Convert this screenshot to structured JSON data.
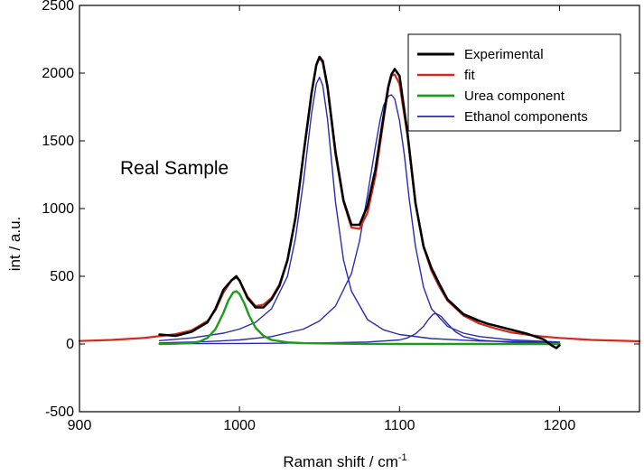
{
  "chart_data": {
    "type": "line",
    "title": "",
    "annotation": "Real Sample",
    "xlabel": "Raman shift / cm",
    "xlabel_superscript": "-1",
    "ylabel": "int / a.u.",
    "xlim": [
      900,
      1250
    ],
    "ylim": [
      -500,
      2500
    ],
    "xticks": [
      900,
      1000,
      1100,
      1200
    ],
    "yticks": [
      -500,
      0,
      500,
      1000,
      1500,
      2000,
      2500
    ],
    "legend_position": "top-right",
    "colors": {
      "experimental": "#000000",
      "fit": "#d42a1e",
      "urea": "#1f9a1f",
      "ethanol": "#2b2bb0"
    },
    "series": [
      {
        "name": "Experimental",
        "key": "experimental",
        "x": [
          950,
          960,
          970,
          980,
          985,
          990,
          995,
          998,
          1000,
          1005,
          1010,
          1015,
          1020,
          1025,
          1030,
          1035,
          1040,
          1045,
          1048,
          1050,
          1052,
          1055,
          1060,
          1065,
          1070,
          1075,
          1080,
          1085,
          1090,
          1093,
          1095,
          1097,
          1100,
          1105,
          1110,
          1115,
          1120,
          1125,
          1130,
          1140,
          1150,
          1155,
          1160,
          1170,
          1180,
          1190,
          1195,
          1198,
          1200
        ],
        "y": [
          70,
          60,
          90,
          160,
          260,
          400,
          470,
          500,
          470,
          340,
          270,
          270,
          330,
          430,
          620,
          930,
          1400,
          1850,
          2060,
          2120,
          2090,
          1900,
          1420,
          1060,
          880,
          880,
          1020,
          1290,
          1680,
          1900,
          1990,
          2030,
          1980,
          1560,
          1040,
          720,
          560,
          440,
          330,
          220,
          170,
          150,
          135,
          105,
          75,
          35,
          -10,
          -30,
          -10
        ]
      },
      {
        "name": "fit",
        "key": "fit",
        "x": [
          900,
          920,
          940,
          960,
          970,
          980,
          985,
          990,
          995,
          998,
          1000,
          1005,
          1010,
          1015,
          1020,
          1025,
          1030,
          1035,
          1040,
          1045,
          1048,
          1050,
          1052,
          1055,
          1060,
          1065,
          1070,
          1075,
          1080,
          1085,
          1090,
          1093,
          1095,
          1097,
          1100,
          1105,
          1110,
          1115,
          1120,
          1125,
          1130,
          1140,
          1150,
          1160,
          1170,
          1180,
          1190,
          1200,
          1220,
          1250
        ],
        "y": [
          22,
          30,
          44,
          73,
          100,
          170,
          250,
          380,
          470,
          490,
          470,
          350,
          280,
          290,
          340,
          440,
          620,
          930,
          1400,
          1850,
          2060,
          2110,
          2080,
          1890,
          1400,
          1050,
          860,
          850,
          970,
          1240,
          1650,
          1890,
          1980,
          1990,
          1920,
          1540,
          1040,
          720,
          540,
          420,
          320,
          210,
          150,
          115,
          85,
          68,
          55,
          45,
          30,
          20
        ]
      },
      {
        "name": "Urea component",
        "key": "urea",
        "x": [
          950,
          960,
          970,
          975,
          980,
          985,
          990,
          993,
          996,
          998,
          1000,
          1003,
          1006,
          1010,
          1015,
          1020,
          1030,
          1040,
          1060,
          1080,
          1100,
          1150,
          1200
        ],
        "y": [
          0,
          2,
          8,
          18,
          45,
          110,
          230,
          320,
          380,
          390,
          370,
          300,
          210,
          120,
          60,
          30,
          12,
          6,
          3,
          1,
          0,
          0,
          0
        ]
      },
      {
        "name": "Ethanol components",
        "key": "ethanol",
        "x": [
          950,
          970,
          990,
          1000,
          1010,
          1020,
          1030,
          1035,
          1040,
          1045,
          1048,
          1050,
          1052,
          1055,
          1060,
          1065,
          1070,
          1080,
          1090,
          1100,
          1120,
          1150,
          1200
        ],
        "y": [
          25,
          45,
          80,
          110,
          160,
          260,
          500,
          780,
          1200,
          1700,
          1920,
          1970,
          1910,
          1660,
          1050,
          620,
          390,
          180,
          105,
          70,
          40,
          22,
          12
        ]
      },
      {
        "name": "Ethanol components",
        "key": "ethanol",
        "legend": false,
        "x": [
          950,
          980,
          1000,
          1020,
          1040,
          1050,
          1060,
          1070,
          1075,
          1080,
          1085,
          1088,
          1090,
          1093,
          1095,
          1097,
          1100,
          1103,
          1106,
          1110,
          1115,
          1120,
          1130,
          1140,
          1150,
          1170,
          1200
        ],
        "y": [
          8,
          18,
          30,
          55,
          110,
          170,
          280,
          520,
          760,
          1100,
          1460,
          1660,
          1760,
          1830,
          1840,
          1810,
          1650,
          1400,
          1080,
          720,
          420,
          260,
          130,
          80,
          55,
          30,
          15
        ]
      },
      {
        "name": "Ethanol components",
        "key": "ethanol",
        "legend": false,
        "x": [
          950,
          1000,
          1050,
          1080,
          1100,
          1105,
          1110,
          1115,
          1118,
          1121,
          1123,
          1126,
          1130,
          1135,
          1140,
          1150,
          1170,
          1200
        ],
        "y": [
          2,
          4,
          8,
          15,
          30,
          45,
          75,
          130,
          180,
          220,
          225,
          205,
          150,
          90,
          55,
          28,
          12,
          5
        ]
      }
    ]
  }
}
